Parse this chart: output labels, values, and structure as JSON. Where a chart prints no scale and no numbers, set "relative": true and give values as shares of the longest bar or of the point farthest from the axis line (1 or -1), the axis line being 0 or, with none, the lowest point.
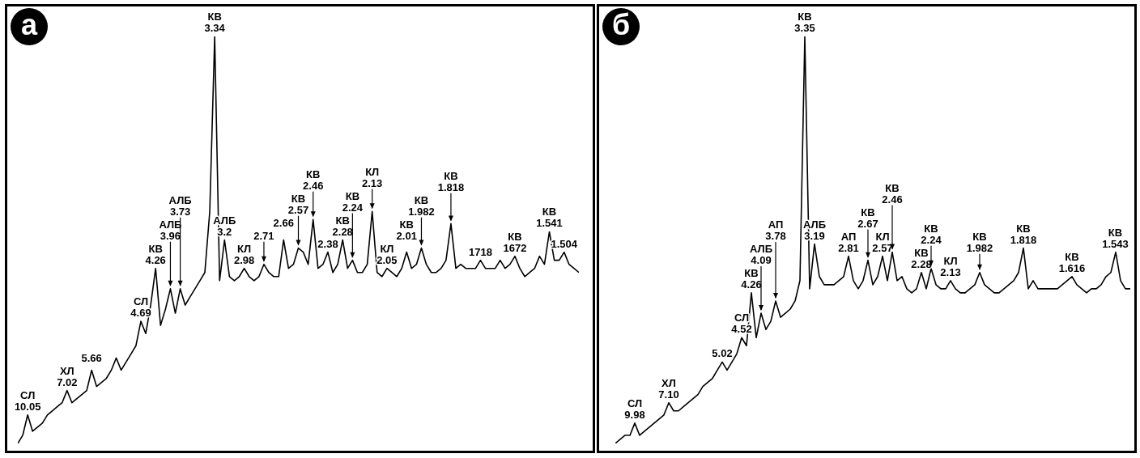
{
  "chart_data": [
    {
      "type": "line",
      "title": "а",
      "relative": true,
      "color": "#000000",
      "categories": [
        null,
        null,
        null,
        null,
        null,
        null,
        null,
        null,
        null,
        null,
        null,
        null,
        null,
        null,
        null,
        null,
        null,
        null,
        null,
        null,
        null,
        null,
        null,
        null,
        null,
        null,
        null,
        null,
        null,
        null,
        null,
        null,
        null,
        null,
        null,
        null,
        null,
        null,
        null,
        null,
        null,
        null,
        null,
        null,
        null,
        null,
        null,
        null,
        null,
        null,
        null,
        null,
        null,
        null,
        null,
        null,
        null,
        null,
        null,
        null,
        null,
        null,
        null,
        null,
        null,
        null,
        null,
        null,
        null,
        null,
        null,
        null,
        null,
        null,
        null,
        null,
        null,
        null,
        null,
        null,
        null,
        null,
        null,
        null,
        null,
        null,
        null,
        null,
        null,
        null,
        null,
        null,
        null,
        null,
        null,
        null,
        null,
        null,
        null,
        null,
        null,
        null,
        null,
        null,
        null,
        null,
        null,
        null,
        null,
        null,
        null,
        null,
        null,
        null,
        null
      ],
      "values": [
        0,
        0.02,
        0.07,
        0.03,
        0.04,
        0.05,
        0.07,
        0.08,
        0.09,
        0.1,
        0.13,
        0.1,
        0.11,
        0.12,
        0.13,
        0.18,
        0.14,
        0.15,
        0.16,
        0.18,
        0.21,
        0.18,
        0.2,
        0.22,
        0.24,
        0.3,
        0.27,
        0.34,
        0.43,
        0.29,
        0.33,
        0.38,
        0.32,
        0.38,
        0.34,
        0.36,
        0.38,
        0.4,
        0.42,
        0.57,
        1,
        0.4,
        0.5,
        0.41,
        0.4,
        0.41,
        0.43,
        0.41,
        0.4,
        0.41,
        0.44,
        0.42,
        0.41,
        0.41,
        0.5,
        0.43,
        0.44,
        0.48,
        0.47,
        0.44,
        0.55,
        0.43,
        0.44,
        0.47,
        0.42,
        0.44,
        0.5,
        0.43,
        0.45,
        0.42,
        0.42,
        0.44,
        0.57,
        0.42,
        0.41,
        0.43,
        0.42,
        0.41,
        0.43,
        0.47,
        0.43,
        0.44,
        0.48,
        0.44,
        0.42,
        0.42,
        0.43,
        0.45,
        0.54,
        0.43,
        0.44,
        0.43,
        0.43,
        0.43,
        0.45,
        0.43,
        0.43,
        0.43,
        0.45,
        0.43,
        0.44,
        0.46,
        0.43,
        0.41,
        0.42,
        0.43,
        0.46,
        0.44,
        0.52,
        0.45,
        0.45,
        0.47,
        0.44,
        0.43,
        0.42
      ],
      "annotations": [
        {
          "text": "СЛ\n10.05",
          "y": 0.07
        },
        {
          "text": "ХЛ\n7.02",
          "y": 0.13
        },
        {
          "text": "5.66",
          "y": 0.18
        },
        {
          "text": "СЛ\n4.69",
          "y": 0.3
        },
        {
          "text": "КВ\n4.26",
          "y": 0.43
        },
        {
          "text": "АЛБ\n3.96",
          "y": 0.38
        },
        {
          "text": "АЛБ\n3.73",
          "y": 0.38
        },
        {
          "text": "КВ\n3.34",
          "y": 1
        },
        {
          "text": "АЛБ\n3.2",
          "y": 0.5
        },
        {
          "text": "КЛ\n2.98",
          "y": 0.43
        },
        {
          "text": "2.71",
          "y": 0.44
        },
        {
          "text": "2.66",
          "y": 0.5
        },
        {
          "text": "КВ\n2.57",
          "y": 0.48
        },
        {
          "text": "КВ\n2.46",
          "y": 0.55
        },
        {
          "text": "2.38",
          "y": 0.47
        },
        {
          "text": "КВ\n2.28",
          "y": 0.5
        },
        {
          "text": "КВ\n2.24",
          "y": 0.45
        },
        {
          "text": "КЛ\n2.13",
          "y": 0.57
        },
        {
          "text": "КЛ\n2.05",
          "y": 0.43
        },
        {
          "text": "КВ\n2.01",
          "y": 0.47
        },
        {
          "text": "КВ\n1.982",
          "y": 0.48
        },
        {
          "text": "КВ\n1.818",
          "y": 0.54
        },
        {
          "text": "1718",
          "y": 0.45
        },
        {
          "text": "КВ\n1672",
          "y": 0.46
        },
        {
          "text": "КВ\n1.541",
          "y": 0.52
        },
        {
          "text": "1.504",
          "y": 0.47
        }
      ]
    },
    {
      "type": "line",
      "title": "б",
      "relative": true,
      "color": "#000000",
      "categories": [
        null,
        null,
        null,
        null,
        null,
        null,
        null,
        null,
        null,
        null,
        null,
        null,
        null,
        null,
        null,
        null,
        null,
        null,
        null,
        null,
        null,
        null,
        null,
        null,
        null,
        null,
        null,
        null,
        null,
        null,
        null,
        null,
        null,
        null,
        null,
        null,
        null,
        null,
        null,
        null,
        null,
        null,
        null,
        null,
        null,
        null,
        null,
        null,
        null,
        null,
        null,
        null,
        null,
        null,
        null,
        null,
        null,
        null,
        null,
        null,
        null,
        null,
        null,
        null,
        null,
        null,
        null,
        null,
        null,
        null,
        null,
        null,
        null,
        null,
        null,
        null,
        null,
        null,
        null,
        null,
        null,
        null,
        null,
        null,
        null,
        null,
        null,
        null,
        null,
        null,
        null,
        null,
        null,
        null,
        null,
        null,
        null,
        null,
        null,
        null,
        null,
        null,
        null,
        null,
        null,
        null,
        null
      ],
      "values": [
        0,
        0.01,
        0.02,
        0.02,
        0.05,
        0.02,
        0.03,
        0.04,
        0.05,
        0.06,
        0.07,
        0.1,
        0.08,
        0.08,
        0.09,
        0.1,
        0.11,
        0.12,
        0.14,
        0.15,
        0.16,
        0.18,
        0.2,
        0.18,
        0.2,
        0.22,
        0.26,
        0.24,
        0.37,
        0.26,
        0.32,
        0.28,
        0.3,
        0.35,
        0.31,
        0.32,
        0.33,
        0.35,
        0.4,
        1,
        0.38,
        0.49,
        0.41,
        0.39,
        0.39,
        0.39,
        0.4,
        0.41,
        0.46,
        0.4,
        0.38,
        0.4,
        0.45,
        0.39,
        0.41,
        0.46,
        0.4,
        0.47,
        0.4,
        0.41,
        0.38,
        0.37,
        0.38,
        0.42,
        0.38,
        0.43,
        0.39,
        0.38,
        0.38,
        0.4,
        0.38,
        0.37,
        0.37,
        0.38,
        0.39,
        0.42,
        0.39,
        0.38,
        0.37,
        0.37,
        0.38,
        0.39,
        0.4,
        0.42,
        0.48,
        0.38,
        0.4,
        0.38,
        0.38,
        0.38,
        0.38,
        0.38,
        0.39,
        0.4,
        0.41,
        0.39,
        0.38,
        0.37,
        0.38,
        0.38,
        0.39,
        0.41,
        0.42,
        0.47,
        0.4,
        0.38,
        0.38
      ],
      "annotations": [
        {
          "text": "СЛ\n9.98",
          "y": 0.05
        },
        {
          "text": "ХЛ\n7.10",
          "y": 0.1
        },
        {
          "text": "5.02",
          "y": 0.2
        },
        {
          "text": "СЛ\n4.52",
          "y": 0.26
        },
        {
          "text": "КВ\n4.26",
          "y": 0.37
        },
        {
          "text": "АЛБ\n4.09",
          "y": 0.32
        },
        {
          "text": "АП\n3.78",
          "y": 0.35
        },
        {
          "text": "КВ\n3.35",
          "y": 1
        },
        {
          "text": "АЛБ\n3.19",
          "y": 0.49
        },
        {
          "text": "АП\n2.81",
          "y": 0.46
        },
        {
          "text": "КВ\n2.67",
          "y": 0.45
        },
        {
          "text": "КЛ\n2.57",
          "y": 0.46
        },
        {
          "text": "КВ\n2.46",
          "y": 0.47
        },
        {
          "text": "КВ\n2.28",
          "y": 0.42
        },
        {
          "text": "КВ\n2.24",
          "y": 0.43
        },
        {
          "text": "КЛ\n2.13",
          "y": 0.4
        },
        {
          "text": "КВ\n1.982",
          "y": 0.42
        },
        {
          "text": "КВ\n1.818",
          "y": 0.48
        },
        {
          "text": "КВ\n1.616",
          "y": 0.41
        },
        {
          "text": "КВ\n1.543",
          "y": 0.47
        }
      ]
    }
  ]
}
